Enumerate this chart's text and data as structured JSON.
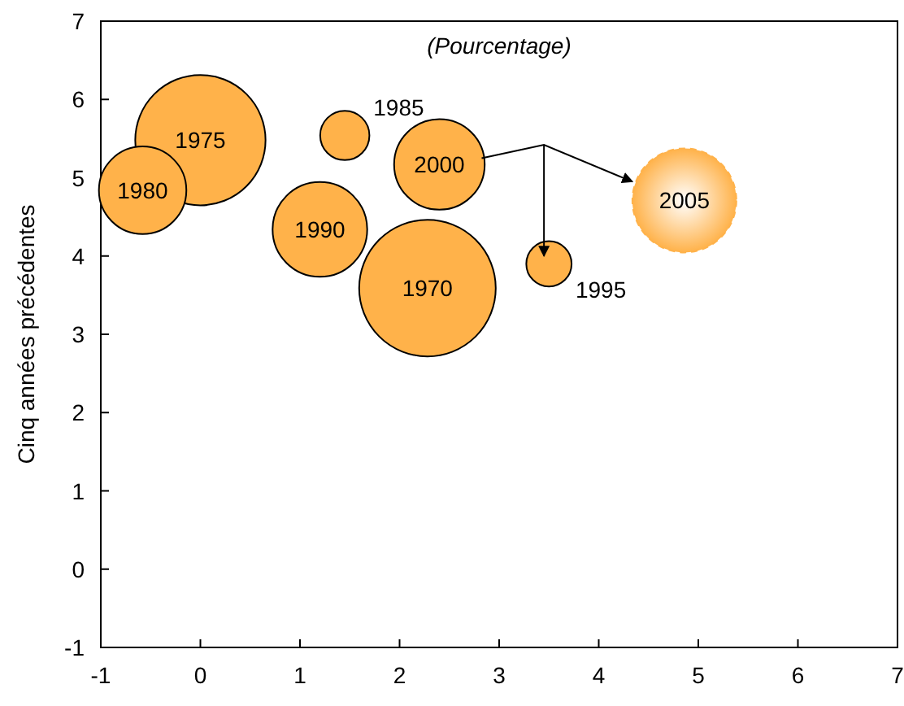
{
  "chart_data": {
    "type": "bubble",
    "title": "(Pourcentage)",
    "ylabel": "Cinq années précédentes",
    "xlim": [
      -1,
      7
    ],
    "xticks": [
      -1,
      0,
      1,
      2,
      3,
      4,
      5,
      6,
      7
    ],
    "ylim": [
      -1,
      7
    ],
    "yticks": [
      -1,
      0,
      1,
      2,
      3,
      4,
      5,
      6,
      7
    ],
    "grid": false,
    "series": [
      {
        "color": "#ffb24a",
        "x": [
          2.28,
          0.0,
          -0.58,
          1.45,
          1.2,
          3.5,
          2.4
        ],
        "values": [
          3.59,
          5.48,
          4.84,
          5.54,
          4.34,
          3.9,
          5.17
        ],
        "sizes": [
          1,
          0.91,
          0.41,
          0.13,
          0.48,
          0.11,
          0.44
        ]
      },
      {
        "color": "#ffb24a",
        "line_style": "dashed",
        "x": [
          4.86
        ],
        "values": [
          4.71
        ],
        "sizes": [
          0.58
        ]
      }
    ],
    "annotations": [
      {
        "text": "1970",
        "x": 2.28,
        "y": 3.59
      },
      {
        "text": "1975",
        "x": 0.0,
        "y": 5.48
      },
      {
        "text": "1980",
        "x": -0.58,
        "y": 4.84
      },
      {
        "text": "1985",
        "x": 1.45,
        "y": 5.54
      },
      {
        "text": "1990",
        "x": 1.2,
        "y": 4.34
      },
      {
        "text": "1995",
        "x": 3.5,
        "y": 3.9
      },
      {
        "text": "2000",
        "x": 2.4,
        "y": 5.17
      },
      {
        "text": "2005",
        "x": 4.86,
        "y": 4.71
      }
    ]
  }
}
